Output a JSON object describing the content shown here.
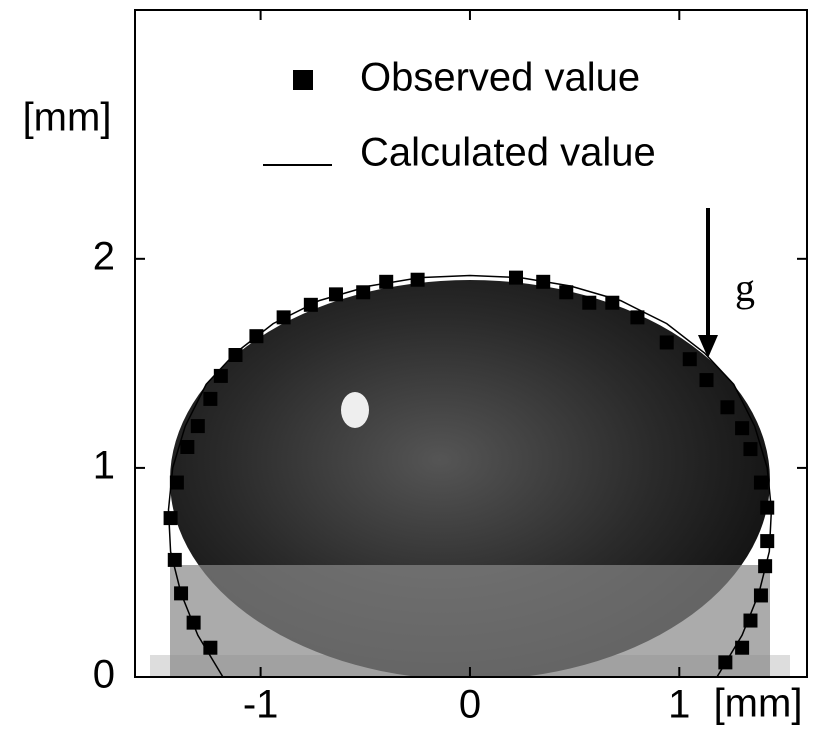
{
  "chart_data": {
    "type": "scatter",
    "xlabel": "[mm]",
    "ylabel": "[mm]",
    "xlim": [
      -1.6,
      1.61
    ],
    "ylim": [
      0,
      3.19
    ],
    "xticks": [
      -1,
      0,
      1
    ],
    "yticks": [
      0,
      1,
      2
    ],
    "annotations": [
      "g"
    ],
    "series": [
      {
        "name": "Observed value",
        "color": "#000000",
        "marker": "square",
        "x": [
          -1.24,
          -1.32,
          -1.38,
          -1.41,
          -1.43,
          -1.4,
          -1.35,
          -1.3,
          -1.24,
          -1.19,
          -1.12,
          -1.02,
          -0.89,
          -0.76,
          -0.64,
          -0.51,
          -0.4,
          -0.25,
          0.22,
          0.35,
          0.46,
          0.57,
          0.68,
          0.8,
          0.94,
          1.05,
          1.13,
          1.23,
          1.3,
          1.34,
          1.39,
          1.42,
          1.42,
          1.41,
          1.39,
          1.34,
          1.3,
          1.22
        ],
        "y": [
          0.14,
          0.26,
          0.4,
          0.56,
          0.76,
          0.93,
          1.1,
          1.2,
          1.33,
          1.44,
          1.54,
          1.63,
          1.72,
          1.78,
          1.83,
          1.84,
          1.89,
          1.9,
          1.91,
          1.89,
          1.84,
          1.79,
          1.79,
          1.72,
          1.6,
          1.52,
          1.42,
          1.29,
          1.19,
          1.09,
          0.93,
          0.81,
          0.65,
          0.53,
          0.39,
          0.27,
          0.14,
          0.07
        ]
      },
      {
        "name": "Calculated value",
        "color": "#000000",
        "marker": "line",
        "x": [
          -1.18,
          -1.3,
          -1.38,
          -1.43,
          -1.44,
          -1.42,
          -1.36,
          -1.26,
          -1.12,
          -0.94,
          -0.72,
          -0.48,
          -0.24,
          0,
          0.24,
          0.48,
          0.72,
          0.94,
          1.12,
          1.26,
          1.36,
          1.42,
          1.44,
          1.43,
          1.38,
          1.3,
          1.18
        ],
        "y": [
          0,
          0.2,
          0.4,
          0.6,
          0.8,
          1.0,
          1.2,
          1.4,
          1.55,
          1.69,
          1.8,
          1.87,
          1.91,
          1.92,
          1.91,
          1.87,
          1.8,
          1.69,
          1.55,
          1.4,
          1.2,
          1.0,
          0.8,
          0.6,
          0.4,
          0.2,
          0
        ]
      }
    ]
  }
}
